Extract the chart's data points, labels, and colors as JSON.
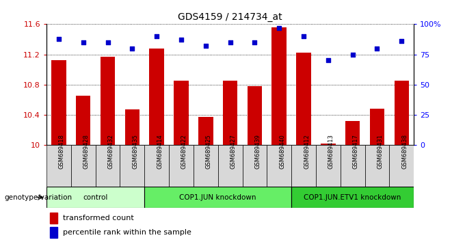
{
  "title": "GDS4159 / 214734_at",
  "samples": [
    "GSM689418",
    "GSM689428",
    "GSM689432",
    "GSM689435",
    "GSM689414",
    "GSM689422",
    "GSM689425",
    "GSM689427",
    "GSM689439",
    "GSM689440",
    "GSM689412",
    "GSM689413",
    "GSM689417",
    "GSM689431",
    "GSM689438"
  ],
  "bar_values": [
    11.12,
    10.65,
    11.17,
    10.47,
    11.28,
    10.85,
    10.37,
    10.85,
    10.78,
    11.56,
    11.22,
    10.02,
    10.32,
    10.48,
    10.85
  ],
  "dot_values": [
    88,
    85,
    85,
    80,
    90,
    87,
    82,
    85,
    85,
    97,
    90,
    70,
    75,
    80,
    86
  ],
  "bar_color": "#cc0000",
  "dot_color": "#0000cc",
  "ylim_left": [
    10,
    11.6
  ],
  "ylim_right": [
    0,
    100
  ],
  "yticks_left": [
    10,
    10.4,
    10.8,
    11.2,
    11.6
  ],
  "yticks_right": [
    0,
    25,
    50,
    75,
    100
  ],
  "ytick_labels_right": [
    "0",
    "25",
    "50",
    "75",
    "100%"
  ],
  "groups": [
    {
      "label": "control",
      "start": 0,
      "end": 4,
      "color": "#ccffcc"
    },
    {
      "label": "COP1.JUN knockdown",
      "start": 4,
      "end": 10,
      "color": "#66ee66"
    },
    {
      "label": "COP1.JUN.ETV1 knockdown",
      "start": 10,
      "end": 15,
      "color": "#33cc33"
    }
  ],
  "xlabel_group": "genotype/variation",
  "legend_bar": "transformed count",
  "legend_dot": "percentile rank within the sample",
  "plot_bg": "#ffffff",
  "cell_bg": "#d8d8d8"
}
